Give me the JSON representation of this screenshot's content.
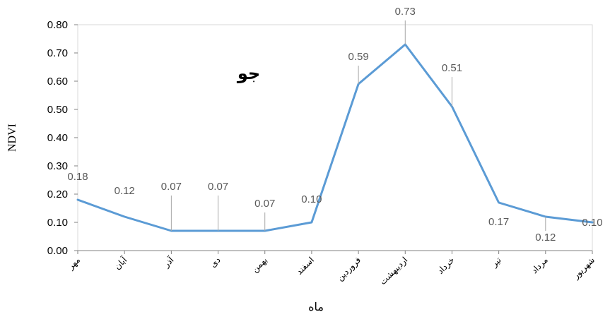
{
  "chart_data": {
    "type": "line",
    "title": "جو",
    "xlabel": "ماه",
    "ylabel": "NDVI",
    "categories": [
      "مهر",
      "آبان",
      "آذر",
      "دی",
      "بهمن",
      "اسفند",
      "فروردین",
      "اردیبهشت",
      "خرداد",
      "تیر",
      "مرداد",
      "شهریور"
    ],
    "series": [
      {
        "values": [
          0.18,
          0.12,
          0.07,
          0.07,
          0.07,
          0.1,
          0.59,
          0.73,
          0.51,
          0.17,
          0.12,
          0.1
        ]
      }
    ],
    "data_labels": [
      "0.18",
      "0.12",
      "0.07",
      "0.07",
      "0.07",
      "0.10",
      "0.59",
      "0.73",
      "0.51",
      "0.17",
      "0.12",
      "0.10"
    ],
    "ylim": [
      0,
      0.8
    ],
    "yticks": [
      "0.00",
      "0.10",
      "0.20",
      "0.30",
      "0.40",
      "0.50",
      "0.60",
      "0.70",
      "0.80"
    ],
    "line_color": "#5b9bd5",
    "leader_color": "#a6a6a6",
    "grid": false,
    "legend": "none"
  }
}
